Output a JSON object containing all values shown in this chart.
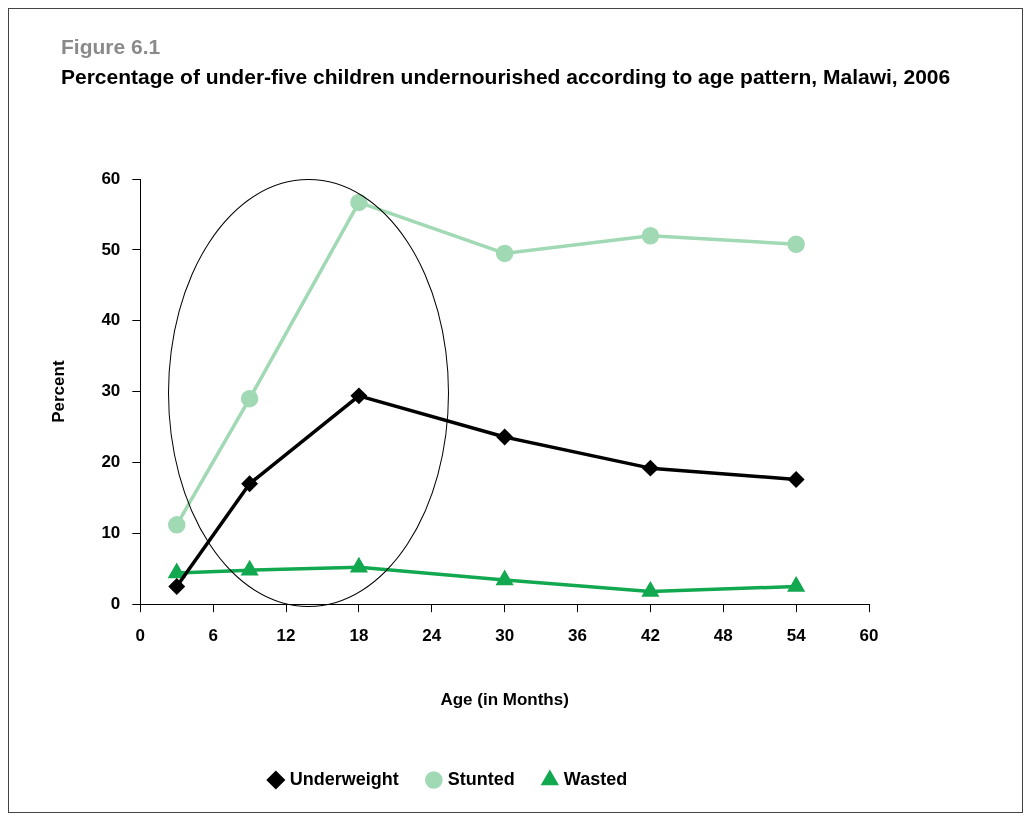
{
  "chart_data": {
    "type": "line",
    "subtitle": "Figure 6.1",
    "title": "Percentage of under-five children undernourished according to age pattern, Malawi, 2006",
    "xlabel": "Age (in Months)",
    "ylabel": "Percent",
    "x": [
      3,
      9,
      18,
      30,
      42,
      54
    ],
    "series": [
      {
        "name": "Underweight",
        "color": "#000000",
        "marker": "diamond",
        "values": [
          2.5,
          17.0,
          29.4,
          23.6,
          19.2,
          17.6
        ]
      },
      {
        "name": "Stunted",
        "color": "#a0d9b4",
        "marker": "circle",
        "values": [
          11.2,
          29.0,
          56.7,
          49.5,
          52.0,
          50.8
        ]
      },
      {
        "name": "Wasted",
        "color": "#12a84f",
        "marker": "triangle",
        "values": [
          4.4,
          4.8,
          5.2,
          3.4,
          1.8,
          2.5
        ]
      }
    ],
    "xlim": [
      0,
      60
    ],
    "xticks": [
      0,
      6,
      12,
      18,
      24,
      30,
      36,
      42,
      48,
      54,
      60
    ],
    "ylim": [
      0,
      60
    ],
    "yticks": [
      0,
      10,
      20,
      30,
      40,
      50,
      60
    ],
    "grid": false,
    "legend": "bottom",
    "line_style": "solid"
  }
}
